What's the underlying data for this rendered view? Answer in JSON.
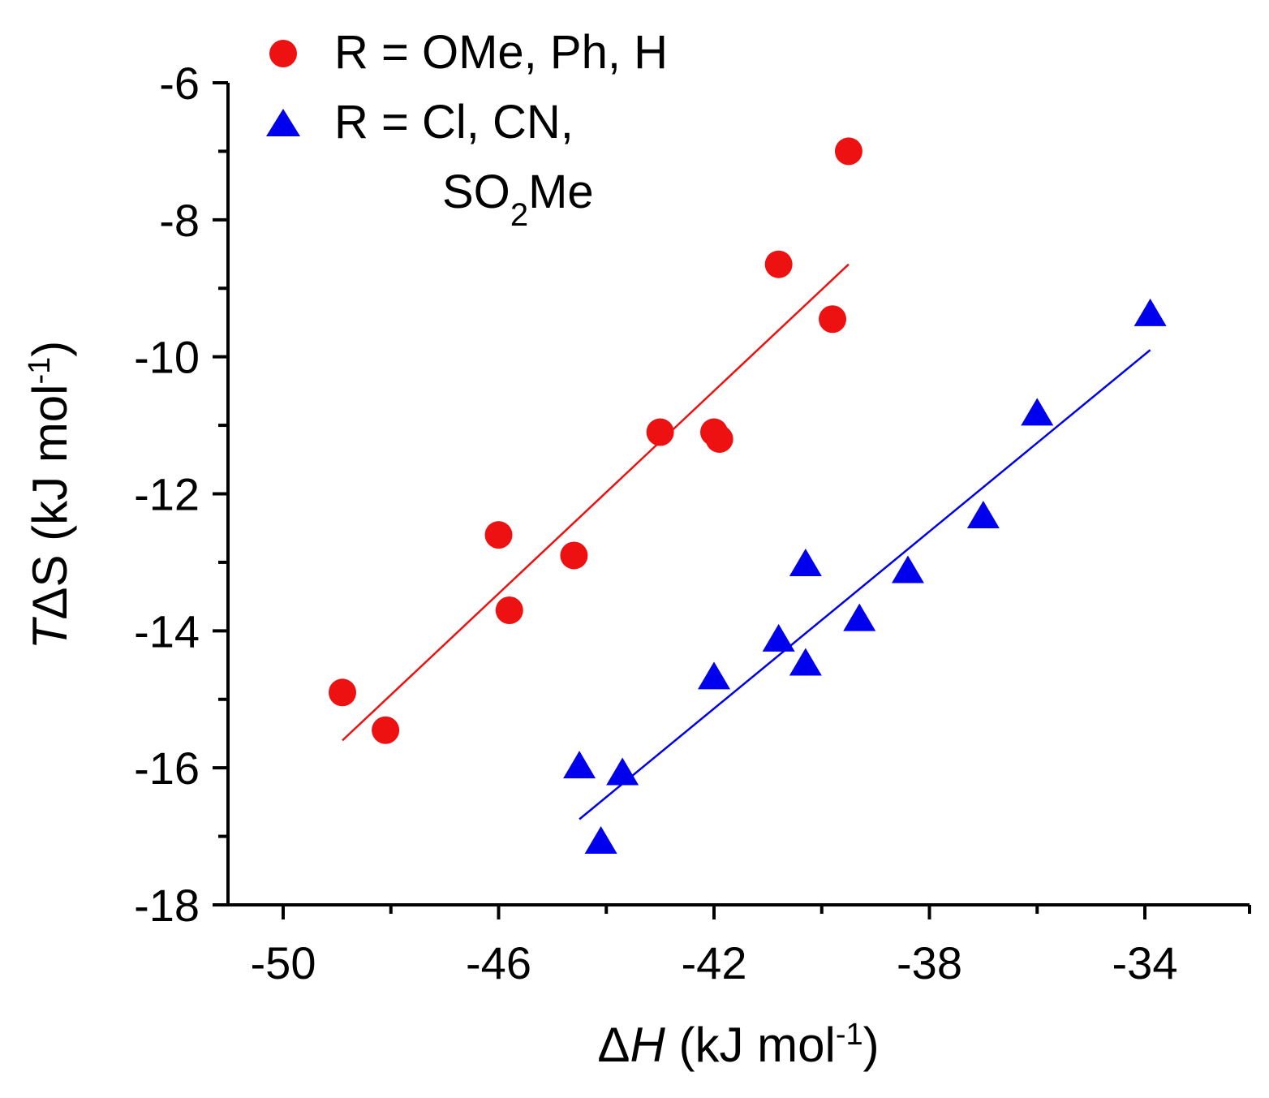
{
  "chart_data": {
    "type": "scatter",
    "title": "",
    "xlabel": {
      "prefix": "Δ",
      "italic": "H",
      "unit": " (kJ mol",
      "sup": "-1",
      "close": ")"
    },
    "ylabel": {
      "italic": "T",
      "symbol": "ΔS",
      "unit": " (kJ mol",
      "sup": "-1",
      "close": ")"
    },
    "xlim": [
      -51,
      -32
    ],
    "ylim": [
      -18,
      -6
    ],
    "xticks": [
      -50,
      -46,
      -42,
      -38,
      -34
    ],
    "xtick_labels": [
      "-50",
      "-46",
      "-42",
      "-38",
      "-34"
    ],
    "yticks": [
      -6,
      -8,
      -10,
      -12,
      -14,
      -16,
      -18
    ],
    "ytick_labels": [
      "-6",
      "-8",
      "-10",
      "-12",
      "-14",
      "-16",
      "-18"
    ],
    "series": [
      {
        "name": "R = OMe, Ph, H",
        "legend_line1": "R = OMe, Ph, H",
        "marker": "circle",
        "color": "#ee1111",
        "points": [
          [
            -48.9,
            -14.9
          ],
          [
            -48.1,
            -15.45
          ],
          [
            -46.0,
            -12.6
          ],
          [
            -45.8,
            -13.7
          ],
          [
            -44.6,
            -12.9
          ],
          [
            -43.0,
            -11.1
          ],
          [
            -42.0,
            -11.1
          ],
          [
            -41.9,
            -11.2
          ],
          [
            -40.8,
            -8.65
          ],
          [
            -39.8,
            -9.45
          ],
          [
            -39.5,
            -7.0
          ]
        ],
        "fit": [
          [
            -48.9,
            -15.6
          ],
          [
            -39.5,
            -8.65
          ]
        ]
      },
      {
        "name": "R = Cl, CN, SO2Me",
        "legend_line1": "R = Cl, CN,",
        "legend_line2_main": "SO",
        "legend_line2_sub": "2",
        "legend_line2_rest": "Me",
        "marker": "triangle",
        "color": "#0000ee",
        "points": [
          [
            -44.5,
            -16.0
          ],
          [
            -44.1,
            -17.1
          ],
          [
            -43.7,
            -16.1
          ],
          [
            -42.0,
            -14.7
          ],
          [
            -40.8,
            -14.15
          ],
          [
            -40.3,
            -14.5
          ],
          [
            -40.3,
            -13.05
          ],
          [
            -39.3,
            -13.85
          ],
          [
            -38.4,
            -13.15
          ],
          [
            -37.0,
            -12.35
          ],
          [
            -36.0,
            -10.85
          ],
          [
            -33.9,
            -9.4
          ]
        ],
        "fit": [
          [
            -44.5,
            -16.75
          ],
          [
            -33.9,
            -9.9
          ]
        ]
      }
    ],
    "legend_position": "top-left"
  }
}
